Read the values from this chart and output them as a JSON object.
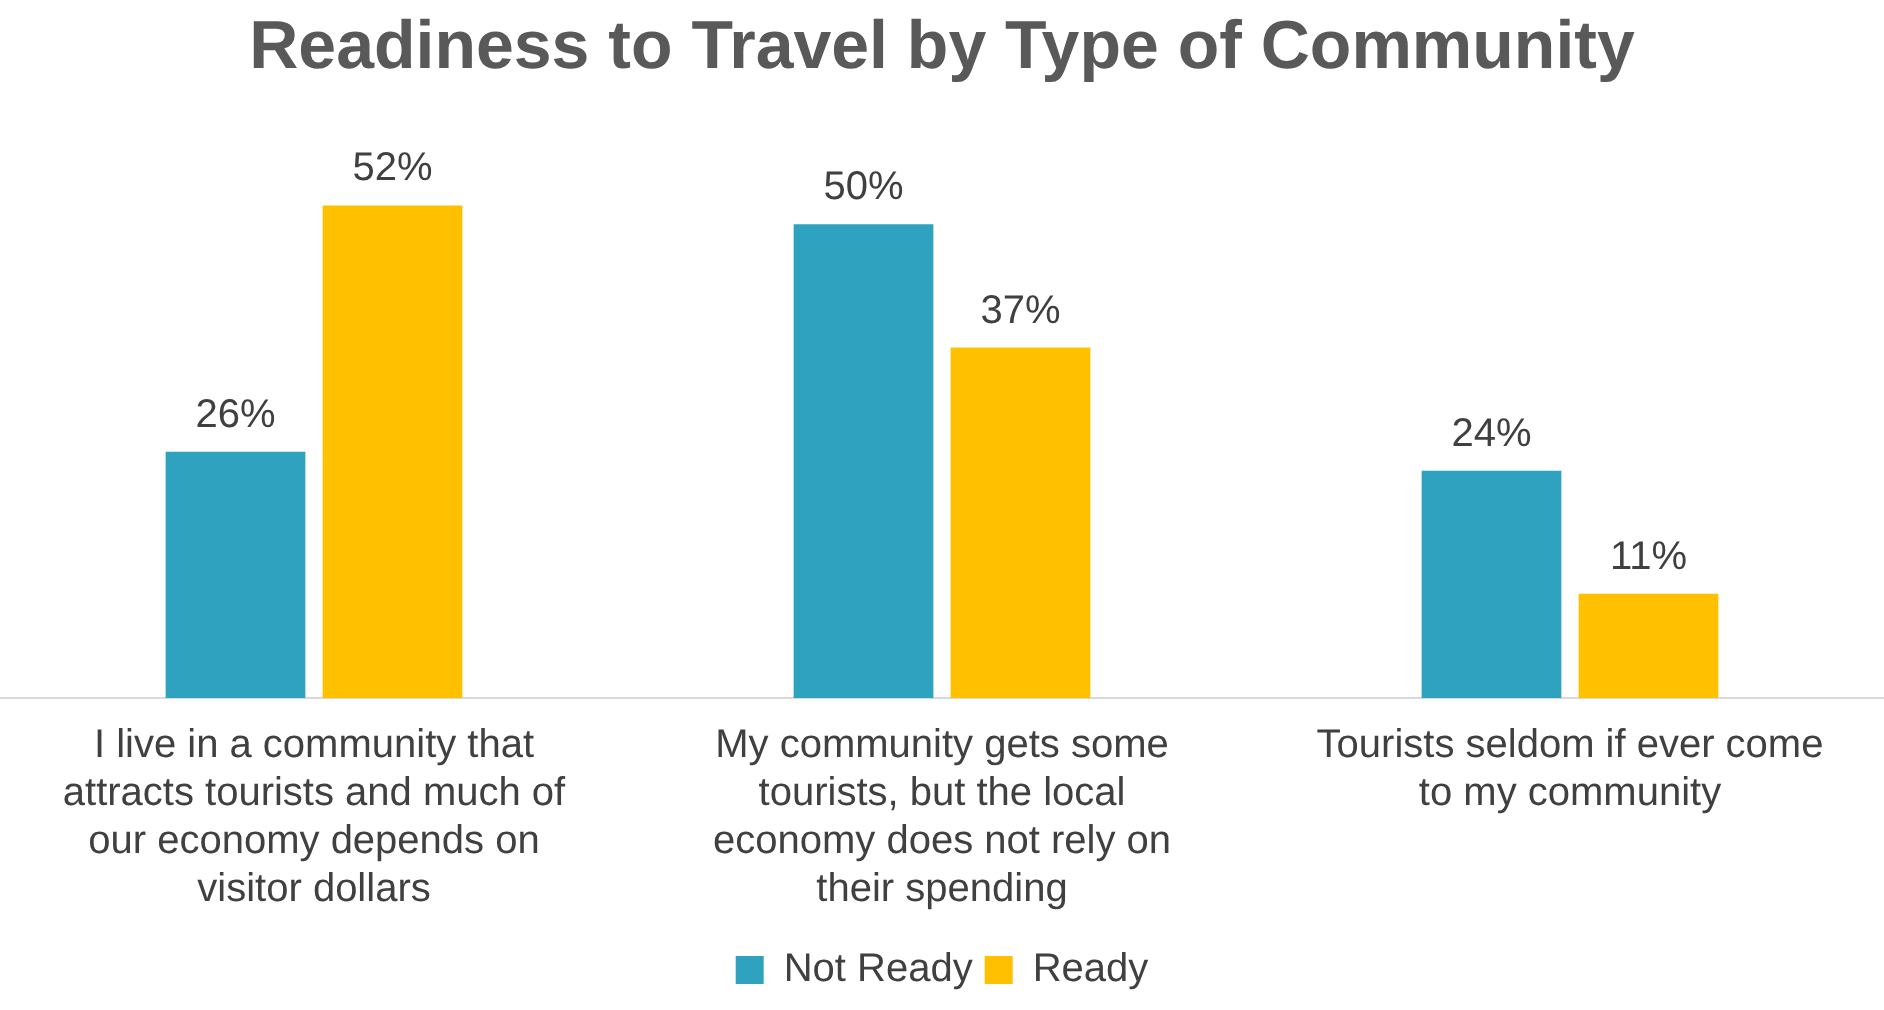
{
  "chart_data": {
    "type": "bar",
    "title": "Readiness to Travel by Type of Community",
    "categories": [
      "I live in a community that attracts tourists and much of our economy depends on visitor dollars",
      "My community gets some tourists, but the local economy does not rely on their spending",
      "Tourists seldom if ever come to my community"
    ],
    "series": [
      {
        "name": "Not Ready",
        "color": "#2ea2bf",
        "values": [
          26,
          50,
          24
        ],
        "value_labels": [
          "26%",
          "50%",
          "24%"
        ]
      },
      {
        "name": "Ready",
        "color": "#ffc000",
        "values": [
          52,
          37,
          11
        ],
        "value_labels": [
          "52%",
          "37%",
          "11%"
        ]
      }
    ],
    "legend": "bottom",
    "grid": false,
    "tick_labels": "x"
  }
}
